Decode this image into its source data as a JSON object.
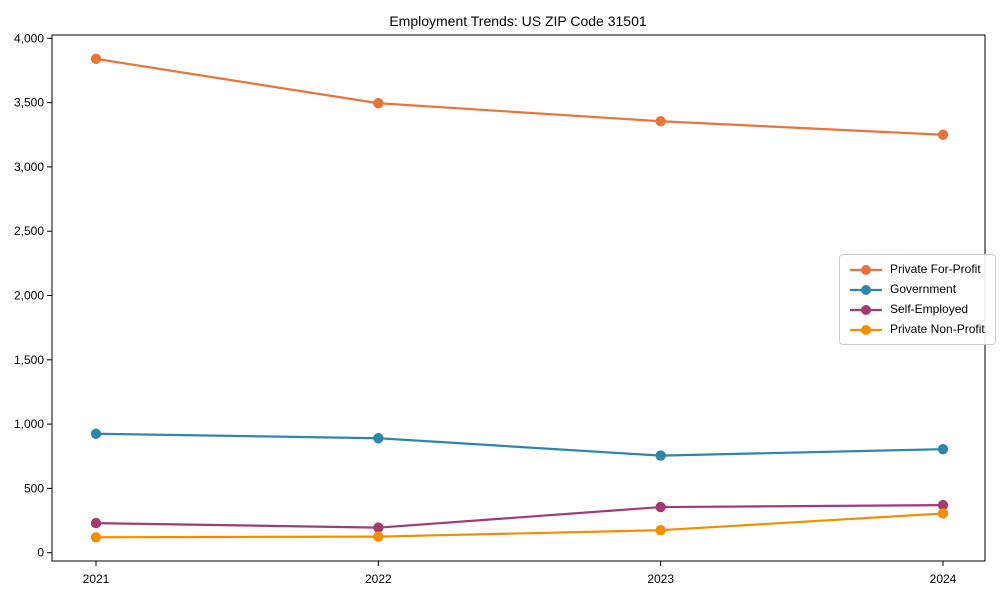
{
  "chart_data": {
    "type": "line",
    "title": "Employment Trends: US ZIP Code 31501",
    "x": [
      "2021",
      "2022",
      "2023",
      "2024"
    ],
    "series": [
      {
        "name": "Private For-Profit",
        "color": "#E8743B",
        "values": [
          3840,
          3495,
          3355,
          3250
        ]
      },
      {
        "name": "Government",
        "color": "#2E86AB",
        "values": [
          925,
          890,
          755,
          805
        ]
      },
      {
        "name": "Self-Employed",
        "color": "#A23B72",
        "values": [
          230,
          195,
          355,
          370
        ]
      },
      {
        "name": "Private Non-Profit",
        "color": "#F18F01",
        "values": [
          120,
          125,
          175,
          305
        ]
      }
    ],
    "xlabel": "",
    "ylabel": "",
    "ylim": [
      0,
      4000
    ],
    "yticks": [
      0,
      500,
      1000,
      1500,
      2000,
      2500,
      3000,
      3500,
      4000
    ],
    "ytick_labels": [
      "0",
      "500",
      "1,000",
      "1,500",
      "2,000",
      "2,500",
      "3,000",
      "3,500",
      "4,000"
    ],
    "grid": false,
    "marker": "circle",
    "legend_position": "center-right",
    "axis_color": "#000000",
    "legend_border_color": "#cccccc"
  }
}
